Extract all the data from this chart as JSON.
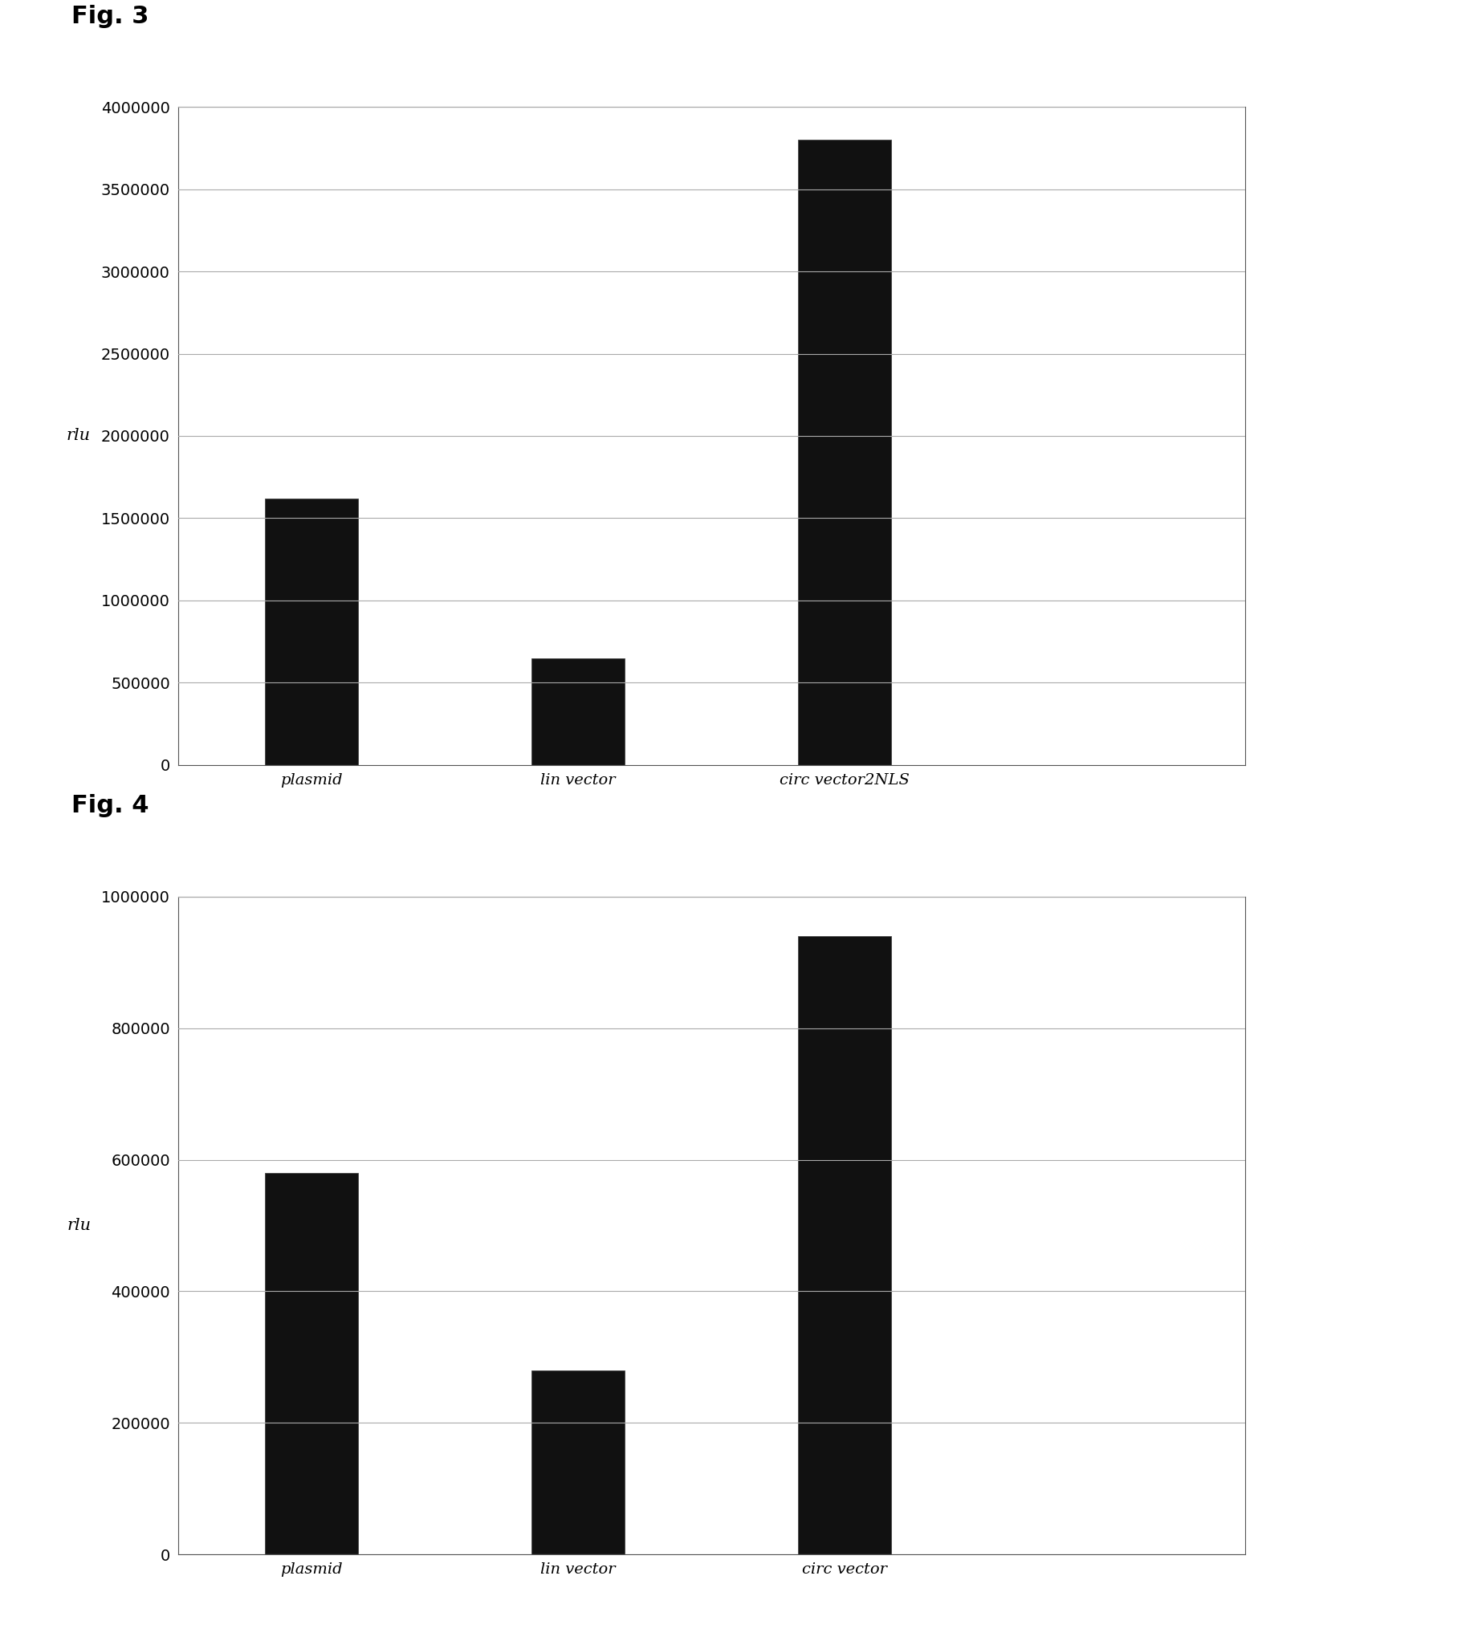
{
  "fig3": {
    "title": "Fig. 3",
    "categories": [
      "plasmid",
      "lin vector",
      "circ vector2NLS"
    ],
    "values": [
      1620000,
      650000,
      3800000
    ],
    "ylabel": "rlu",
    "ylim": [
      0,
      4000000
    ],
    "yticks": [
      0,
      500000,
      1000000,
      1500000,
      2000000,
      2500000,
      3000000,
      3500000,
      4000000
    ],
    "bar_color": "#111111",
    "bar_edge_color": "#444444",
    "background_color": "#ffffff"
  },
  "fig4": {
    "title": "Fig. 4",
    "categories": [
      "plasmid",
      "lin vector",
      "circ vector"
    ],
    "values": [
      580000,
      280000,
      940000
    ],
    "ylabel": "rlu",
    "ylim": [
      0,
      1000000
    ],
    "yticks": [
      0,
      200000,
      400000,
      600000,
      800000,
      1000000
    ],
    "bar_color": "#111111",
    "bar_edge_color": "#444444",
    "background_color": "#ffffff"
  },
  "fig_label_fontsize": 22,
  "fig_label_fontweight": "bold",
  "tick_label_fontsize": 14,
  "axis_label_fontsize": 15,
  "xlabel_fontsize": 14,
  "page_background": "#ffffff"
}
